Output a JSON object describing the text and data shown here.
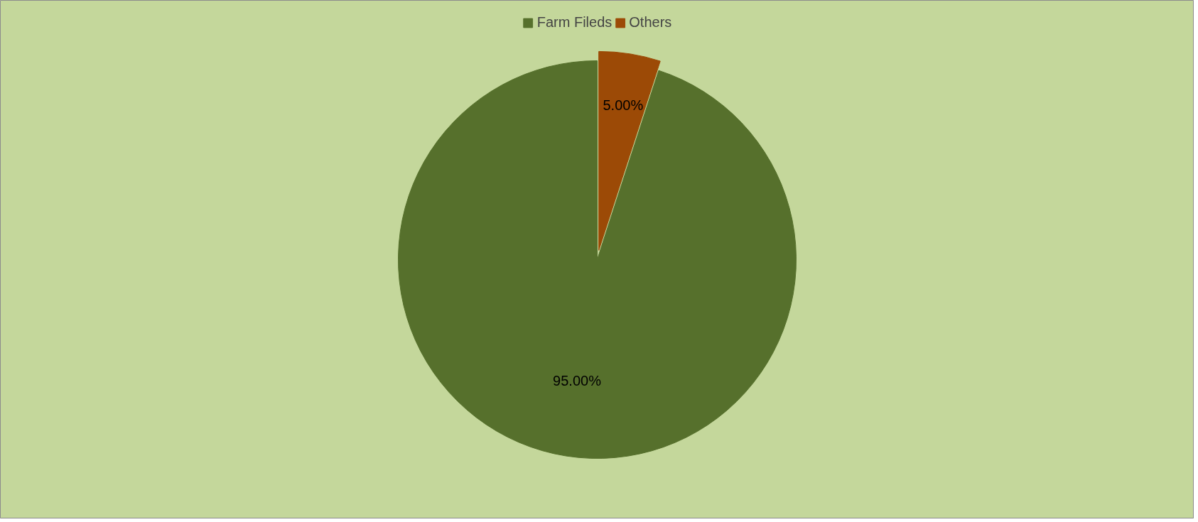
{
  "chart_data": {
    "type": "pie",
    "categories": [
      "Farm Fileds",
      "Others"
    ],
    "values": [
      95,
      5
    ],
    "colors": [
      "#56702c",
      "#9c4a06"
    ],
    "value_labels": [
      "95.00%",
      "5.00%"
    ],
    "legend": "top"
  }
}
